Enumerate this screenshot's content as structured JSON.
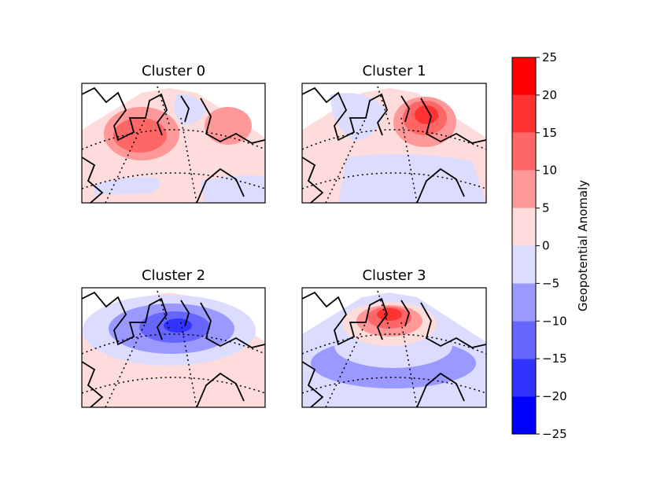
{
  "chart_data": {
    "type": "heatmap",
    "subtype": "filled-contour map panels",
    "colormap": "bwr",
    "panels": [
      {
        "title": "Cluster 0",
        "pattern": "positive anomaly over Greenland / Labrador Sea, weak positive over Scandinavia, weak negative over Svalbard"
      },
      {
        "title": "Cluster 1",
        "pattern": "strong positive anomaly over Greenland Sea / Norwegian Sea, negative over Canadian Arctic and mid-Atlantic"
      },
      {
        "title": "Cluster 2",
        "pattern": "strong negative anomaly centered near Iceland / Greenland, weak positive to the south"
      },
      {
        "title": "Cluster 3",
        "pattern": "strong positive anomaly over Greenland, negative band over mid-latitude Atlantic"
      }
    ],
    "colorbar": {
      "label": "Geopotential Anomaly",
      "ticks": [
        -25,
        -20,
        -15,
        -10,
        -5,
        0,
        5,
        10,
        15,
        20,
        25
      ],
      "tick_labels": [
        "−25",
        "−20",
        "−15",
        "−10",
        "−5",
        "0",
        "5",
        "10",
        "15",
        "20",
        "25"
      ],
      "levels": [
        -25,
        -20,
        -15,
        -10,
        -5,
        0,
        5,
        10,
        15,
        20,
        25
      ],
      "level_colors": [
        "#0000ff",
        "#3333ff",
        "#6666ff",
        "#9999ff",
        "#dcdcff",
        "#ffdcdc",
        "#ff9999",
        "#ff6666",
        "#ff3333",
        "#ff0000"
      ],
      "range": [
        -25,
        25
      ]
    }
  }
}
